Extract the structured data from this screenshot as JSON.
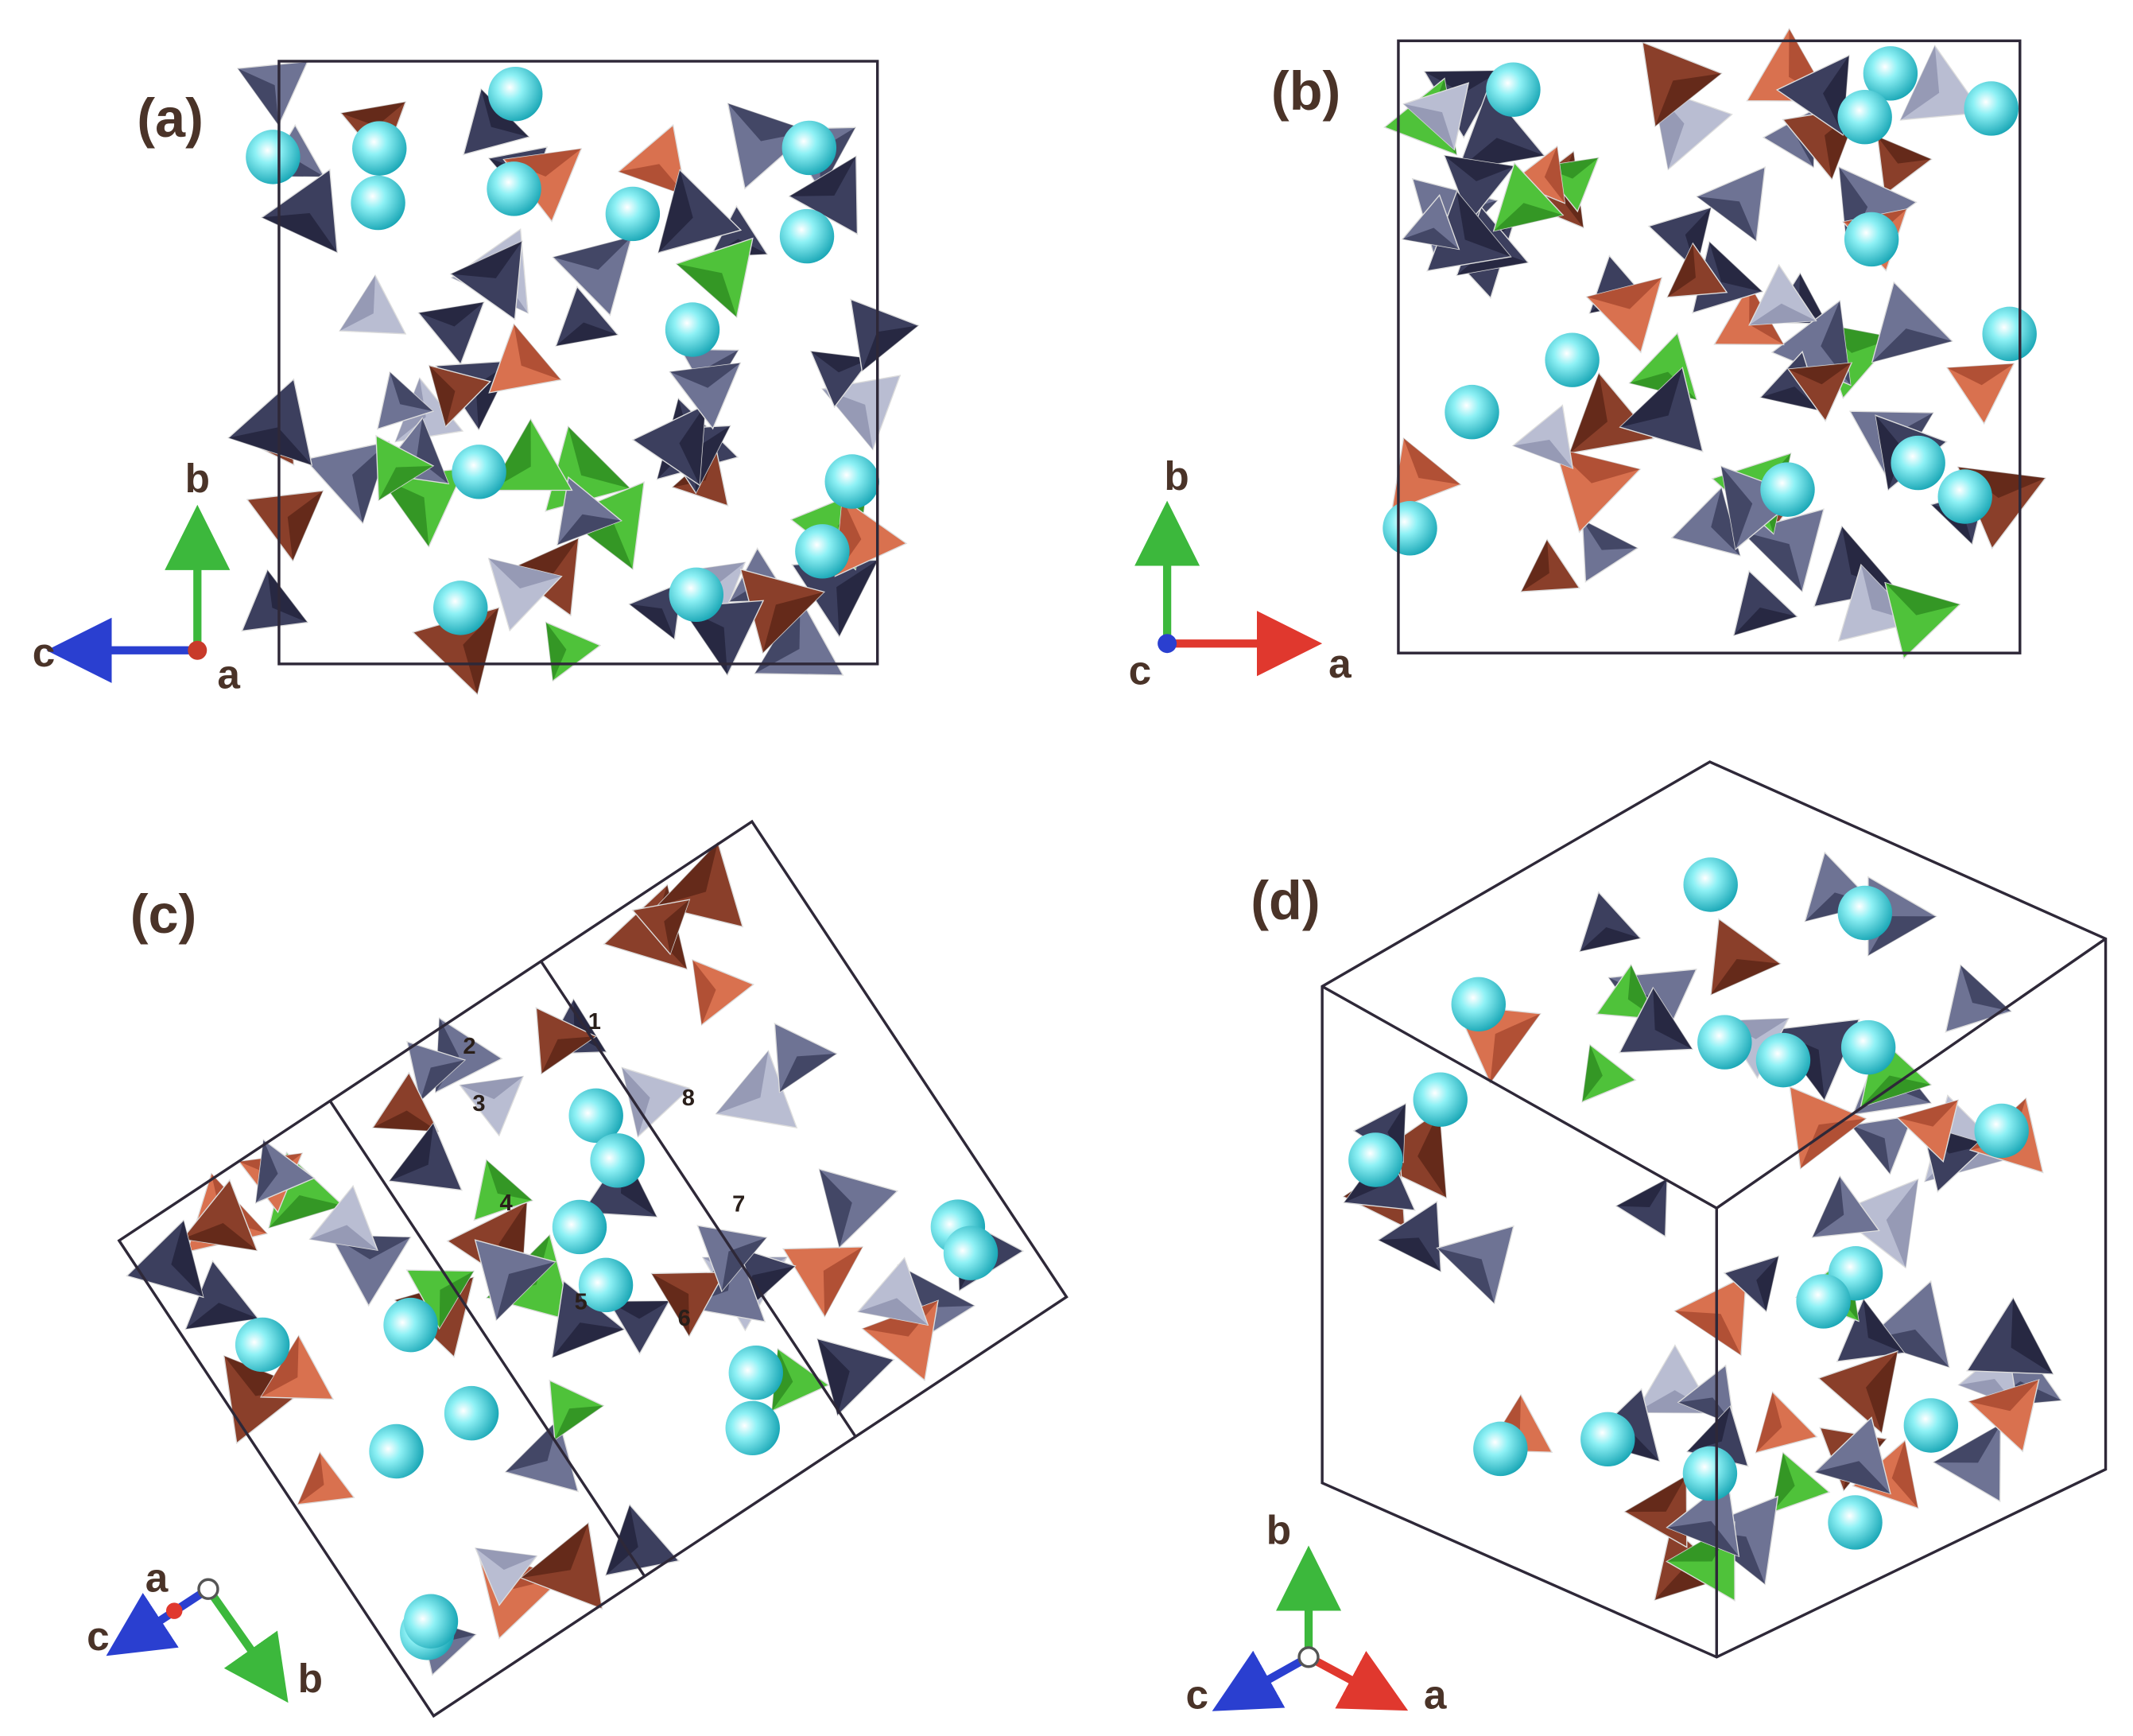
{
  "panels": [
    {
      "label": "(a)",
      "axes": [
        "b",
        "c",
        "a"
      ]
    },
    {
      "label": "(b)",
      "axes": [
        "b",
        "c",
        "a"
      ]
    },
    {
      "label": "(c)",
      "axes": [
        "a",
        "c",
        "b"
      ],
      "sites": [
        "1",
        "2",
        "3",
        "4",
        "5",
        "6",
        "7",
        "8"
      ]
    },
    {
      "label": "(d)",
      "axes": [
        "b",
        "c",
        "a"
      ]
    }
  ]
}
